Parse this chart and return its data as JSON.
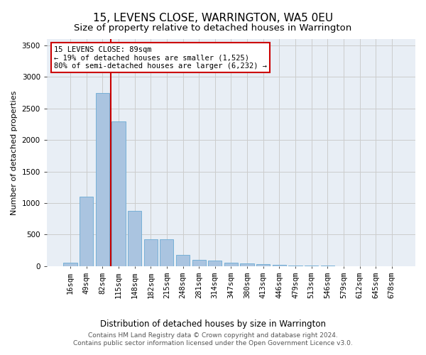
{
  "title": "15, LEVENS CLOSE, WARRINGTON, WA5 0EU",
  "subtitle": "Size of property relative to detached houses in Warrington",
  "xlabel": "Distribution of detached houses by size in Warrington",
  "ylabel": "Number of detached properties",
  "categories": [
    "16sqm",
    "49sqm",
    "82sqm",
    "115sqm",
    "148sqm",
    "182sqm",
    "215sqm",
    "248sqm",
    "281sqm",
    "314sqm",
    "347sqm",
    "380sqm",
    "413sqm",
    "446sqm",
    "479sqm",
    "513sqm",
    "546sqm",
    "579sqm",
    "612sqm",
    "645sqm",
    "678sqm"
  ],
  "values": [
    50,
    1100,
    2750,
    2300,
    880,
    430,
    430,
    175,
    105,
    90,
    55,
    40,
    35,
    25,
    15,
    10,
    5,
    3,
    3,
    2,
    2
  ],
  "bar_color": "#aac4e0",
  "bar_edge_color": "#6aaad4",
  "vline_color": "#cc0000",
  "vline_x_index": 2.5,
  "annotation_text": "15 LEVENS CLOSE: 89sqm\n← 19% of detached houses are smaller (1,525)\n80% of semi-detached houses are larger (6,232) →",
  "annotation_box_color": "white",
  "annotation_box_edge_color": "#cc0000",
  "ylim": [
    0,
    3600
  ],
  "yticks": [
    0,
    500,
    1000,
    1500,
    2000,
    2500,
    3000,
    3500
  ],
  "grid_color": "#cccccc",
  "bg_color": "#e8eef5",
  "footer_text": "Contains HM Land Registry data © Crown copyright and database right 2024.\nContains public sector information licensed under the Open Government Licence v3.0.",
  "title_fontsize": 11,
  "subtitle_fontsize": 9.5,
  "xlabel_fontsize": 8.5,
  "ylabel_fontsize": 8,
  "footer_fontsize": 6.5,
  "tick_fontsize": 7.5,
  "annot_fontsize": 7.5
}
